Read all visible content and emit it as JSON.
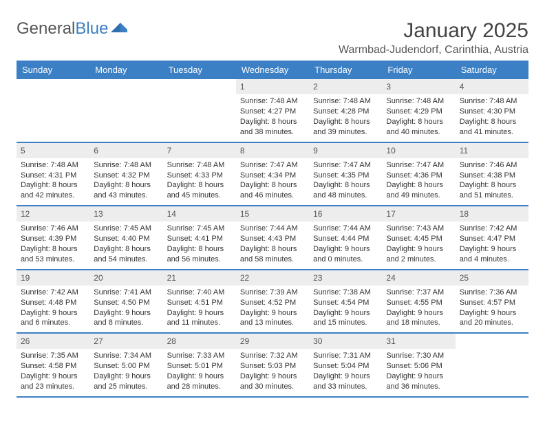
{
  "brand": {
    "part1": "General",
    "part2": "Blue"
  },
  "title": "January 2025",
  "location": "Warmbad-Judendorf, Carinthia, Austria",
  "colors": {
    "header_bg": "#3b7fc4",
    "daynum_bg": "#ededed",
    "border": "#3b7fc4",
    "text": "#333333",
    "muted": "#555555"
  },
  "days_of_week": [
    "Sunday",
    "Monday",
    "Tuesday",
    "Wednesday",
    "Thursday",
    "Friday",
    "Saturday"
  ],
  "weeks": [
    [
      null,
      null,
      null,
      {
        "n": "1",
        "sunrise": "Sunrise: 7:48 AM",
        "sunset": "Sunset: 4:27 PM",
        "d1": "Daylight: 8 hours",
        "d2": "and 38 minutes."
      },
      {
        "n": "2",
        "sunrise": "Sunrise: 7:48 AM",
        "sunset": "Sunset: 4:28 PM",
        "d1": "Daylight: 8 hours",
        "d2": "and 39 minutes."
      },
      {
        "n": "3",
        "sunrise": "Sunrise: 7:48 AM",
        "sunset": "Sunset: 4:29 PM",
        "d1": "Daylight: 8 hours",
        "d2": "and 40 minutes."
      },
      {
        "n": "4",
        "sunrise": "Sunrise: 7:48 AM",
        "sunset": "Sunset: 4:30 PM",
        "d1": "Daylight: 8 hours",
        "d2": "and 41 minutes."
      }
    ],
    [
      {
        "n": "5",
        "sunrise": "Sunrise: 7:48 AM",
        "sunset": "Sunset: 4:31 PM",
        "d1": "Daylight: 8 hours",
        "d2": "and 42 minutes."
      },
      {
        "n": "6",
        "sunrise": "Sunrise: 7:48 AM",
        "sunset": "Sunset: 4:32 PM",
        "d1": "Daylight: 8 hours",
        "d2": "and 43 minutes."
      },
      {
        "n": "7",
        "sunrise": "Sunrise: 7:48 AM",
        "sunset": "Sunset: 4:33 PM",
        "d1": "Daylight: 8 hours",
        "d2": "and 45 minutes."
      },
      {
        "n": "8",
        "sunrise": "Sunrise: 7:47 AM",
        "sunset": "Sunset: 4:34 PM",
        "d1": "Daylight: 8 hours",
        "d2": "and 46 minutes."
      },
      {
        "n": "9",
        "sunrise": "Sunrise: 7:47 AM",
        "sunset": "Sunset: 4:35 PM",
        "d1": "Daylight: 8 hours",
        "d2": "and 48 minutes."
      },
      {
        "n": "10",
        "sunrise": "Sunrise: 7:47 AM",
        "sunset": "Sunset: 4:36 PM",
        "d1": "Daylight: 8 hours",
        "d2": "and 49 minutes."
      },
      {
        "n": "11",
        "sunrise": "Sunrise: 7:46 AM",
        "sunset": "Sunset: 4:38 PM",
        "d1": "Daylight: 8 hours",
        "d2": "and 51 minutes."
      }
    ],
    [
      {
        "n": "12",
        "sunrise": "Sunrise: 7:46 AM",
        "sunset": "Sunset: 4:39 PM",
        "d1": "Daylight: 8 hours",
        "d2": "and 53 minutes."
      },
      {
        "n": "13",
        "sunrise": "Sunrise: 7:45 AM",
        "sunset": "Sunset: 4:40 PM",
        "d1": "Daylight: 8 hours",
        "d2": "and 54 minutes."
      },
      {
        "n": "14",
        "sunrise": "Sunrise: 7:45 AM",
        "sunset": "Sunset: 4:41 PM",
        "d1": "Daylight: 8 hours",
        "d2": "and 56 minutes."
      },
      {
        "n": "15",
        "sunrise": "Sunrise: 7:44 AM",
        "sunset": "Sunset: 4:43 PM",
        "d1": "Daylight: 8 hours",
        "d2": "and 58 minutes."
      },
      {
        "n": "16",
        "sunrise": "Sunrise: 7:44 AM",
        "sunset": "Sunset: 4:44 PM",
        "d1": "Daylight: 9 hours",
        "d2": "and 0 minutes."
      },
      {
        "n": "17",
        "sunrise": "Sunrise: 7:43 AM",
        "sunset": "Sunset: 4:45 PM",
        "d1": "Daylight: 9 hours",
        "d2": "and 2 minutes."
      },
      {
        "n": "18",
        "sunrise": "Sunrise: 7:42 AM",
        "sunset": "Sunset: 4:47 PM",
        "d1": "Daylight: 9 hours",
        "d2": "and 4 minutes."
      }
    ],
    [
      {
        "n": "19",
        "sunrise": "Sunrise: 7:42 AM",
        "sunset": "Sunset: 4:48 PM",
        "d1": "Daylight: 9 hours",
        "d2": "and 6 minutes."
      },
      {
        "n": "20",
        "sunrise": "Sunrise: 7:41 AM",
        "sunset": "Sunset: 4:50 PM",
        "d1": "Daylight: 9 hours",
        "d2": "and 8 minutes."
      },
      {
        "n": "21",
        "sunrise": "Sunrise: 7:40 AM",
        "sunset": "Sunset: 4:51 PM",
        "d1": "Daylight: 9 hours",
        "d2": "and 11 minutes."
      },
      {
        "n": "22",
        "sunrise": "Sunrise: 7:39 AM",
        "sunset": "Sunset: 4:52 PM",
        "d1": "Daylight: 9 hours",
        "d2": "and 13 minutes."
      },
      {
        "n": "23",
        "sunrise": "Sunrise: 7:38 AM",
        "sunset": "Sunset: 4:54 PM",
        "d1": "Daylight: 9 hours",
        "d2": "and 15 minutes."
      },
      {
        "n": "24",
        "sunrise": "Sunrise: 7:37 AM",
        "sunset": "Sunset: 4:55 PM",
        "d1": "Daylight: 9 hours",
        "d2": "and 18 minutes."
      },
      {
        "n": "25",
        "sunrise": "Sunrise: 7:36 AM",
        "sunset": "Sunset: 4:57 PM",
        "d1": "Daylight: 9 hours",
        "d2": "and 20 minutes."
      }
    ],
    [
      {
        "n": "26",
        "sunrise": "Sunrise: 7:35 AM",
        "sunset": "Sunset: 4:58 PM",
        "d1": "Daylight: 9 hours",
        "d2": "and 23 minutes."
      },
      {
        "n": "27",
        "sunrise": "Sunrise: 7:34 AM",
        "sunset": "Sunset: 5:00 PM",
        "d1": "Daylight: 9 hours",
        "d2": "and 25 minutes."
      },
      {
        "n": "28",
        "sunrise": "Sunrise: 7:33 AM",
        "sunset": "Sunset: 5:01 PM",
        "d1": "Daylight: 9 hours",
        "d2": "and 28 minutes."
      },
      {
        "n": "29",
        "sunrise": "Sunrise: 7:32 AM",
        "sunset": "Sunset: 5:03 PM",
        "d1": "Daylight: 9 hours",
        "d2": "and 30 minutes."
      },
      {
        "n": "30",
        "sunrise": "Sunrise: 7:31 AM",
        "sunset": "Sunset: 5:04 PM",
        "d1": "Daylight: 9 hours",
        "d2": "and 33 minutes."
      },
      {
        "n": "31",
        "sunrise": "Sunrise: 7:30 AM",
        "sunset": "Sunset: 5:06 PM",
        "d1": "Daylight: 9 hours",
        "d2": "and 36 minutes."
      },
      null
    ]
  ]
}
